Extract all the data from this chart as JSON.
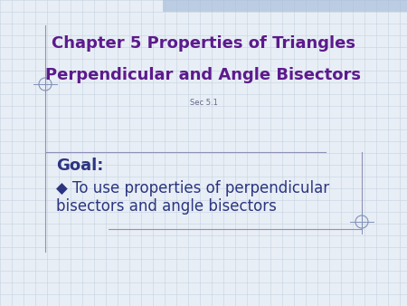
{
  "bg_color": "#e8eef5",
  "grid_color": "#c5d3e0",
  "title_line1": "Chapter 5 Properties of Triangles",
  "title_line2": "Perpendicular and Angle Bisectors",
  "subtitle": "Sec 5.1",
  "title_color": "#5c1a8c",
  "subtitle_color": "#666688",
  "goal_label": "Goal:",
  "goal_bullet": "◆ To use properties of perpendicular",
  "goal_line2": "bisectors and angle bisectors",
  "goal_color": "#2b3580",
  "bullet_color": "#4040a0",
  "title_fontsize": 13,
  "subtitle_fontsize": 6,
  "goal_label_fontsize": 13,
  "goal_text_fontsize": 12,
  "line_color": "#9090b8",
  "corner_color": "#8090b8",
  "top_bar_color": "#a0b8d8"
}
